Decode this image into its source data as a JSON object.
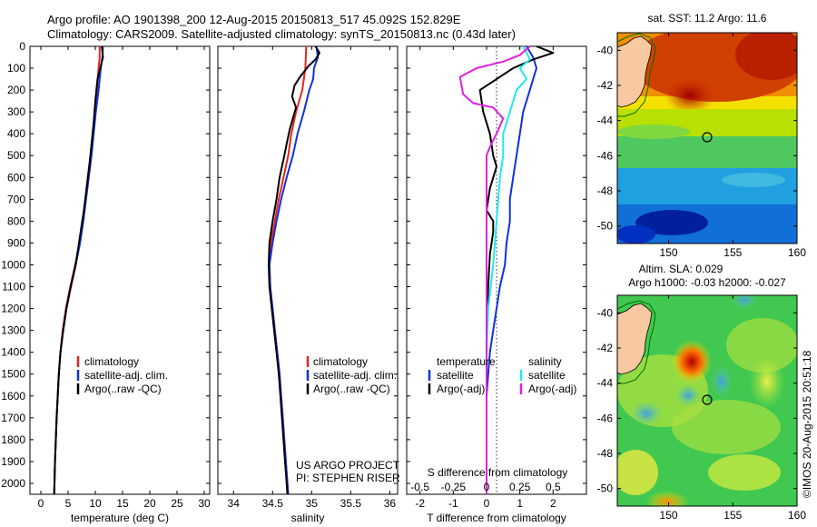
{
  "header": {
    "title_line1": "Argo profile: AO 1901398_200 12-Aug-2015 20150813_517 45.092S 152.829E",
    "title_line2": "Climatology: CARS2009. Satellite-adjusted climatology: synTS_20150813.nc (0.43d later)"
  },
  "colors": {
    "climatology": "#e8231c",
    "satellite": "#1030e0",
    "argo": "#000000",
    "satellite_salinity": "#22e8f0",
    "argo_salinity": "#e020e0"
  },
  "chart_data": [
    {
      "type": "line",
      "title": "",
      "xlabel": "temperature (deg C)",
      "ylabel": "",
      "xlim": [
        -2,
        31
      ],
      "ylim": [
        2050,
        0
      ],
      "x_ticks": [
        "0",
        "5",
        "10",
        "15",
        "20",
        "25",
        "30"
      ],
      "y_ticks": [
        "0",
        "100",
        "200",
        "300",
        "400",
        "500",
        "600",
        "700",
        "800",
        "900",
        "1000",
        "1100",
        "1200",
        "1300",
        "1400",
        "1500",
        "1600",
        "1700",
        "1800",
        "1900",
        "2000"
      ],
      "legend": {
        "placement": "lower-center",
        "entries": [
          "climatology",
          "satellite-adj. clim.",
          "Argo(..raw -QC)"
        ]
      },
      "series": [
        {
          "name": "climatology",
          "color_key": "climatology",
          "points": [
            [
              10.8,
              0
            ],
            [
              10.8,
              50
            ],
            [
              10.6,
              100
            ],
            [
              10.3,
              200
            ],
            [
              9.9,
              300
            ],
            [
              9.5,
              400
            ],
            [
              9.1,
              500
            ],
            [
              8.6,
              600
            ],
            [
              8.2,
              700
            ],
            [
              7.7,
              800
            ],
            [
              7.1,
              900
            ],
            [
              6.3,
              1000
            ],
            [
              5.4,
              1100
            ],
            [
              4.6,
              1200
            ],
            [
              4.0,
              1300
            ],
            [
              3.6,
              1400
            ],
            [
              3.3,
              1500
            ],
            [
              3.1,
              1600
            ],
            [
              2.9,
              1700
            ],
            [
              2.75,
              1800
            ],
            [
              2.6,
              1900
            ],
            [
              2.5,
              2000
            ],
            [
              2.45,
              2050
            ]
          ]
        },
        {
          "name": "satellite-adj. clim.",
          "color_key": "satellite",
          "points": [
            [
              11.4,
              0
            ],
            [
              11.3,
              50
            ],
            [
              11.0,
              100
            ],
            [
              10.6,
              200
            ],
            [
              10.1,
              300
            ],
            [
              9.7,
              400
            ],
            [
              9.3,
              500
            ],
            [
              8.8,
              600
            ],
            [
              8.3,
              700
            ],
            [
              7.8,
              800
            ],
            [
              7.2,
              900
            ],
            [
              6.4,
              1000
            ],
            [
              5.5,
              1100
            ],
            [
              4.7,
              1200
            ],
            [
              4.1,
              1300
            ],
            [
              3.6,
              1400
            ],
            [
              3.3,
              1500
            ],
            [
              3.1,
              1600
            ],
            [
              2.9,
              1700
            ],
            [
              2.75,
              1800
            ],
            [
              2.6,
              1900
            ],
            [
              2.5,
              2000
            ],
            [
              2.45,
              2050
            ]
          ]
        },
        {
          "name": "Argo(..raw -QC)",
          "color_key": "argo",
          "points": [
            [
              11.2,
              0
            ],
            [
              11.4,
              50
            ],
            [
              10.9,
              100
            ],
            [
              10.4,
              150
            ],
            [
              10.0,
              250
            ],
            [
              9.7,
              350
            ],
            [
              9.3,
              450
            ],
            [
              8.9,
              550
            ],
            [
              8.4,
              650
            ],
            [
              7.9,
              750
            ],
            [
              7.3,
              850
            ],
            [
              6.4,
              1000
            ],
            [
              5.5,
              1100
            ],
            [
              4.7,
              1200
            ],
            [
              4.1,
              1300
            ],
            [
              3.6,
              1400
            ],
            [
              3.3,
              1500
            ],
            [
              3.1,
              1600
            ],
            [
              2.9,
              1700
            ],
            [
              2.75,
              1800
            ],
            [
              2.6,
              1900
            ],
            [
              2.5,
              2000
            ],
            [
              2.45,
              2050
            ]
          ]
        }
      ]
    },
    {
      "type": "line",
      "title": "",
      "xlabel": "salinity",
      "ylabel": "",
      "xlim": [
        33.8,
        36.1
      ],
      "ylim": [
        2050,
        0
      ],
      "x_ticks": [
        "34",
        "34.5",
        "35",
        "35.5",
        "36"
      ],
      "legend": {
        "placement": "lower-right",
        "entries": [
          "climatology",
          "satellite-adj. clim.",
          "Argo(..raw -QC)"
        ]
      },
      "annotation_lines": [
        "US ARGO PROJECT",
        "PI: STEPHEN RISER"
      ],
      "series": [
        {
          "name": "climatology",
          "color_key": "climatology",
          "points": [
            [
              34.93,
              0
            ],
            [
              34.92,
              100
            ],
            [
              34.88,
              200
            ],
            [
              34.8,
              300
            ],
            [
              34.74,
              400
            ],
            [
              34.7,
              500
            ],
            [
              34.64,
              600
            ],
            [
              34.58,
              700
            ],
            [
              34.53,
              800
            ],
            [
              34.48,
              900
            ],
            [
              34.46,
              1000
            ],
            [
              34.47,
              1100
            ],
            [
              34.5,
              1200
            ],
            [
              34.53,
              1300
            ],
            [
              34.56,
              1400
            ],
            [
              34.59,
              1500
            ],
            [
              34.61,
              1600
            ],
            [
              34.63,
              1700
            ],
            [
              34.65,
              1800
            ],
            [
              34.67,
              1900
            ],
            [
              34.69,
              2000
            ],
            [
              34.7,
              2050
            ]
          ]
        },
        {
          "name": "satellite-adj. clim.",
          "color_key": "satellite",
          "points": [
            [
              35.06,
              0
            ],
            [
              35.08,
              50
            ],
            [
              35.03,
              100
            ],
            [
              35.02,
              150
            ],
            [
              34.97,
              200
            ],
            [
              34.9,
              300
            ],
            [
              34.82,
              400
            ],
            [
              34.76,
              500
            ],
            [
              34.68,
              600
            ],
            [
              34.61,
              700
            ],
            [
              34.55,
              800
            ],
            [
              34.5,
              900
            ],
            [
              34.46,
              1000
            ],
            [
              34.47,
              1100
            ],
            [
              34.5,
              1200
            ],
            [
              34.53,
              1300
            ],
            [
              34.56,
              1400
            ],
            [
              34.59,
              1500
            ],
            [
              34.61,
              1600
            ],
            [
              34.63,
              1700
            ],
            [
              34.65,
              1800
            ],
            [
              34.67,
              1900
            ],
            [
              34.69,
              2000
            ],
            [
              34.7,
              2050
            ]
          ]
        },
        {
          "name": "Argo(..raw -QC)",
          "color_key": "argo",
          "points": [
            [
              35.05,
              0
            ],
            [
              35.1,
              30
            ],
            [
              35.05,
              60
            ],
            [
              34.96,
              90
            ],
            [
              34.85,
              140
            ],
            [
              34.78,
              180
            ],
            [
              34.75,
              230
            ],
            [
              34.8,
              280
            ],
            [
              34.76,
              330
            ],
            [
              34.72,
              380
            ],
            [
              34.69,
              430
            ],
            [
              34.65,
              500
            ],
            [
              34.59,
              600
            ],
            [
              34.55,
              700
            ],
            [
              34.5,
              800
            ],
            [
              34.46,
              900
            ],
            [
              34.45,
              1000
            ],
            [
              34.46,
              1100
            ],
            [
              34.49,
              1200
            ],
            [
              34.52,
              1300
            ],
            [
              34.55,
              1400
            ],
            [
              34.58,
              1500
            ],
            [
              34.6,
              1600
            ],
            [
              34.62,
              1700
            ],
            [
              34.64,
              1800
            ],
            [
              34.66,
              1900
            ],
            [
              34.68,
              2000
            ],
            [
              34.69,
              2050
            ]
          ]
        }
      ]
    },
    {
      "type": "line",
      "title": "",
      "xlabel": "T difference from climatology",
      "secondary_xlabel": "S difference from climatology",
      "ylabel": "",
      "xlim": [
        -2.4,
        3.0
      ],
      "ylim": [
        2050,
        0
      ],
      "x_ticks": [
        "-2",
        "-1",
        "0",
        "1",
        "2"
      ],
      "secondary_x_ticks": [
        "-0.5",
        "-0.25",
        "0",
        "0.25",
        "0.5"
      ],
      "legend": {
        "placement": "lower-center",
        "group_titles": [
          "temperature",
          "salinity"
        ],
        "entries": [
          "satellite",
          "Argo(-adj)",
          "satellite",
          "Argo(-adj)"
        ]
      },
      "series": [
        {
          "name": "satellite",
          "group": "temperature",
          "color_key": "satellite",
          "points": [
            [
              1.2,
              0
            ],
            [
              1.4,
              50
            ],
            [
              1.5,
              100
            ],
            [
              1.3,
              200
            ],
            [
              1.1,
              300
            ],
            [
              1.0,
              400
            ],
            [
              0.9,
              500
            ],
            [
              0.8,
              600
            ],
            [
              0.7,
              700
            ],
            [
              0.7,
              800
            ],
            [
              0.6,
              900
            ],
            [
              0.55,
              1000
            ],
            [
              0.4,
              1100
            ],
            [
              0.3,
              1200
            ],
            [
              0.2,
              1300
            ],
            [
              0.1,
              1400
            ],
            [
              0.05,
              1500
            ],
            [
              0.0,
              1600
            ],
            [
              0.0,
              2050
            ]
          ]
        },
        {
          "name": "Argo(-adj)",
          "group": "temperature",
          "color_key": "argo",
          "points": [
            [
              1.5,
              0
            ],
            [
              2.0,
              30
            ],
            [
              1.4,
              60
            ],
            [
              0.8,
              100
            ],
            [
              0.3,
              150
            ],
            [
              -0.2,
              200
            ],
            [
              -0.1,
              300
            ],
            [
              0.1,
              400
            ],
            [
              0.2,
              500
            ],
            [
              0.3,
              550
            ],
            [
              0.1,
              650
            ],
            [
              0.0,
              750
            ],
            [
              0.2,
              800
            ],
            [
              0.2,
              850
            ],
            [
              0.1,
              950
            ],
            [
              0.05,
              1100
            ],
            [
              0.0,
              1300
            ],
            [
              0.0,
              2050
            ]
          ]
        },
        {
          "name": "satellite",
          "group": "salinity",
          "color_key": "satellite_salinity",
          "points": [
            [
              1.1,
              0
            ],
            [
              1.3,
              60
            ],
            [
              1.0,
              100
            ],
            [
              1.2,
              150
            ],
            [
              0.9,
              200
            ],
            [
              0.7,
              300
            ],
            [
              0.5,
              400
            ],
            [
              0.5,
              500
            ],
            [
              0.4,
              600
            ],
            [
              0.3,
              800
            ],
            [
              0.2,
              1000
            ],
            [
              0.05,
              1200
            ],
            [
              0.0,
              1400
            ],
            [
              0.0,
              2050
            ]
          ]
        },
        {
          "name": "Argo(-adj)",
          "group": "salinity",
          "color_key": "argo_salinity",
          "points": [
            [
              1.3,
              0
            ],
            [
              1.0,
              40
            ],
            [
              0.5,
              70
            ],
            [
              -0.3,
              100
            ],
            [
              -0.8,
              140
            ],
            [
              -0.7,
              220
            ],
            [
              -0.4,
              260
            ],
            [
              0.2,
              280
            ],
            [
              0.5,
              330
            ],
            [
              0.3,
              400
            ],
            [
              0.1,
              460
            ],
            [
              0.0,
              500
            ],
            [
              0.0,
              2050
            ]
          ]
        }
      ]
    },
    {
      "type": "heatmap",
      "title": "sat. SST: 11.2  Argo: 11.6",
      "xlim": [
        146,
        160
      ],
      "ylim": [
        -51,
        -39
      ],
      "x_ticks": [
        "150",
        "155",
        "160"
      ],
      "y_ticks": [
        "-40",
        "-42",
        "-44",
        "-46",
        "-48",
        "-50"
      ],
      "marker": {
        "lon": 152.829,
        "lat": -45.092
      }
    },
    {
      "type": "heatmap",
      "title_line1": "Altim. SLA: 0.029",
      "title_line2": "Argo h1000: -0.03 h2000: -0.027",
      "xlim": [
        146,
        160
      ],
      "ylim": [
        -51,
        -39
      ],
      "x_ticks": [
        "150",
        "155",
        "160"
      ],
      "y_ticks": [
        "-40",
        "-42",
        "-44",
        "-46",
        "-48",
        "-50"
      ],
      "marker": {
        "lon": 152.829,
        "lat": -45.092
      }
    }
  ],
  "footer": {
    "timestamp": "©IMOS 20-Aug-2015 20:51:18"
  }
}
